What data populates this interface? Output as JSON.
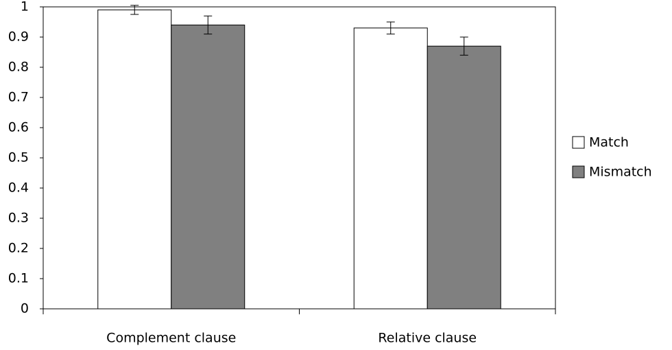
{
  "chart_data": {
    "type": "bar",
    "categories": [
      "Complement clause",
      "Relative clause"
    ],
    "series": [
      {
        "name": "Match",
        "color": "#ffffff",
        "values": [
          0.99,
          0.93
        ],
        "errors": [
          0.015,
          0.02
        ]
      },
      {
        "name": "Mismatch",
        "color": "#808080",
        "values": [
          0.94,
          0.87
        ],
        "errors": [
          0.03,
          0.03
        ]
      }
    ],
    "ylim": [
      0,
      1
    ],
    "yticks": [
      0,
      0.1,
      0.2,
      0.3,
      0.4,
      0.5,
      0.6,
      0.7,
      0.8,
      0.9,
      1
    ],
    "legend": "right"
  }
}
